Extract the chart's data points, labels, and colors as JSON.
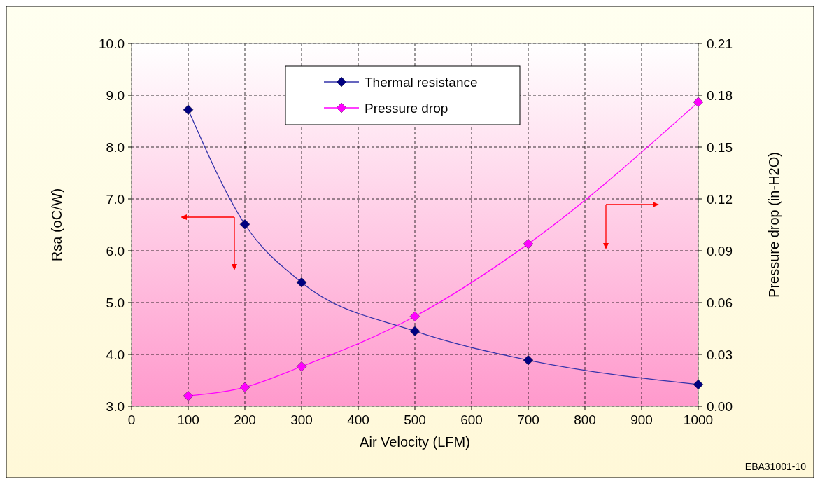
{
  "chart_data": {
    "type": "line",
    "xlabel": "Air Velocity (LFM)",
    "ylabel": "Rsa (oC/W)",
    "y2label": "Pressure drop (in-H2O)",
    "x": [
      100,
      200,
      300,
      500,
      700,
      1000
    ],
    "series": [
      {
        "name": "Thermal resistance",
        "color": "#000080",
        "values": [
          8.72,
          6.51,
          5.39,
          4.45,
          3.89,
          3.42
        ]
      },
      {
        "name": "Pressure drop",
        "color": "#ff00ff",
        "axis": "y2",
        "values": [
          0.006,
          0.011,
          0.023,
          0.052,
          0.094,
          0.176
        ]
      }
    ],
    "xlim": [
      0,
      1000
    ],
    "xticks": [
      0,
      100,
      200,
      300,
      400,
      500,
      600,
      700,
      800,
      900,
      1000
    ],
    "ylim": [
      3,
      10
    ],
    "yticks": [
      {
        "value": 3,
        "label": "3.0"
      },
      {
        "value": 4,
        "label": "4.0"
      },
      {
        "value": 5,
        "label": "5.0"
      },
      {
        "value": 6,
        "label": "6.0"
      },
      {
        "value": 7,
        "label": "7.0"
      },
      {
        "value": 8,
        "label": "8.0"
      },
      {
        "value": 9,
        "label": "9.0"
      },
      {
        "value": 10,
        "label": "10.0"
      }
    ],
    "y2lim": [
      0,
      0.21
    ],
    "y2ticks": [
      {
        "value": 0,
        "label": "0.00"
      },
      {
        "value": 0.03,
        "label": "0.03"
      },
      {
        "value": 0.06,
        "label": "0.06"
      },
      {
        "value": 0.09,
        "label": "0.09"
      },
      {
        "value": 0.12,
        "label": "0.12"
      },
      {
        "value": 0.15,
        "label": "0.15"
      },
      {
        "value": 0.18,
        "label": "0.18"
      },
      {
        "value": 0.21,
        "label": "0.21"
      }
    ],
    "grid": true,
    "legend": "top",
    "marker": "diamond",
    "line_style": "solid",
    "annotations": [
      "EBA31001-10"
    ]
  }
}
